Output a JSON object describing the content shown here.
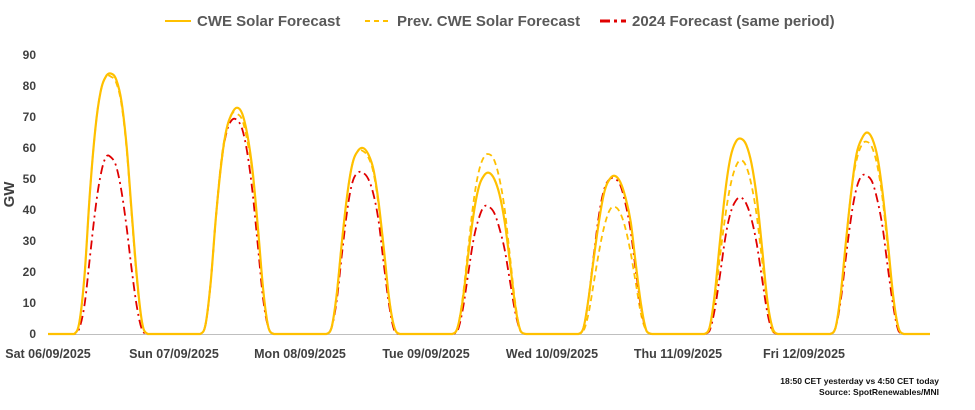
{
  "chart_data": {
    "type": "line",
    "title": "",
    "xlabel": "",
    "ylabel": "GW",
    "ylim": [
      0,
      90
    ],
    "yticks": [
      0,
      10,
      20,
      30,
      40,
      50,
      60,
      70,
      80,
      90
    ],
    "grid": false,
    "legend_position": "top",
    "days": [
      "Sat 06/09/2025",
      "Sun 07/09/2025",
      "Mon 08/09/2025",
      "Tue 09/09/2025",
      "Wed 10/09/2025",
      "Thu 11/09/2025",
      "Fri 12/09/2025"
    ],
    "day_hours": [
      4,
      5,
      6,
      7,
      8,
      9,
      10,
      11,
      12,
      13,
      14,
      15,
      16,
      17,
      18,
      19,
      20,
      21
    ],
    "series": [
      {
        "name": "CWE Solar Forecast",
        "color": "#FFC000",
        "style": "solid",
        "daily_values": [
          [
            0,
            0,
            4,
            20,
            46,
            66,
            78,
            83,
            84,
            82,
            75,
            60,
            38,
            17,
            3,
            0,
            0,
            0
          ],
          [
            0,
            0,
            3,
            17,
            38,
            55,
            66,
            71,
            73,
            71,
            64,
            52,
            34,
            14,
            2,
            0,
            0,
            0
          ],
          [
            0,
            0,
            2,
            13,
            30,
            45,
            55,
            59,
            60,
            58,
            53,
            42,
            27,
            11,
            2,
            0,
            0,
            0
          ],
          [
            0,
            0,
            2,
            11,
            25,
            38,
            47,
            51,
            52,
            50,
            45,
            36,
            23,
            9,
            1,
            0,
            0,
            0
          ],
          [
            0,
            0,
            2,
            12,
            25,
            37,
            46,
            50,
            51,
            49,
            44,
            36,
            22,
            9,
            1,
            0,
            0,
            0
          ],
          [
            0,
            0,
            2,
            13,
            30,
            46,
            57,
            62,
            63,
            61,
            55,
            44,
            28,
            11,
            2,
            0,
            0,
            0
          ],
          [
            0,
            0,
            2,
            13,
            30,
            46,
            58,
            63,
            65,
            63,
            57,
            45,
            29,
            12,
            2,
            0,
            0,
            0
          ]
        ]
      },
      {
        "name": "Prev. CWE Solar Forecast",
        "color": "#FFC000",
        "style": "dashed",
        "daily_values": [
          [
            0,
            0,
            4,
            20,
            46,
            66,
            78,
            83,
            83,
            81,
            74,
            59,
            37,
            16,
            3,
            0,
            0,
            0
          ],
          [
            0,
            0,
            3,
            17,
            38,
            56,
            66,
            71,
            71,
            69,
            62,
            51,
            33,
            14,
            2,
            0,
            0,
            0
          ],
          [
            0,
            0,
            2,
            13,
            30,
            45,
            55,
            59,
            59,
            57,
            52,
            41,
            26,
            11,
            2,
            0,
            0,
            0
          ],
          [
            0,
            0,
            2,
            12,
            27,
            42,
            52,
            57,
            58,
            56,
            50,
            40,
            25,
            10,
            1,
            0,
            0,
            0
          ],
          [
            0,
            0,
            1,
            7,
            17,
            27,
            35,
            40,
            41,
            39,
            34,
            26,
            16,
            6,
            1,
            0,
            0,
            0
          ],
          [
            0,
            0,
            2,
            11,
            25,
            38,
            48,
            54,
            56,
            54,
            48,
            38,
            24,
            10,
            1,
            0,
            0,
            0
          ],
          [
            0,
            0,
            2,
            13,
            30,
            46,
            56,
            61,
            62,
            60,
            54,
            43,
            27,
            11,
            2,
            0,
            0,
            0
          ]
        ]
      },
      {
        "name": "2024 Forecast (same period)",
        "color": "#E00000",
        "style": "dashdot",
        "daily_values": [
          [
            0,
            0,
            2,
            10,
            25,
            40,
            51,
            57,
            57,
            54,
            46,
            34,
            20,
            8,
            1,
            0,
            0,
            0
          ],
          [
            0,
            0,
            3,
            17,
            38,
            55,
            65,
            69,
            69,
            66,
            58,
            45,
            28,
            11,
            2,
            0,
            0,
            0
          ],
          [
            0,
            0,
            2,
            11,
            26,
            40,
            49,
            52,
            52,
            50,
            45,
            36,
            22,
            9,
            1,
            0,
            0,
            0
          ],
          [
            0,
            0,
            1,
            8,
            19,
            30,
            37,
            41,
            41,
            39,
            34,
            27,
            17,
            7,
            1,
            0,
            0,
            0
          ],
          [
            0,
            0,
            2,
            12,
            26,
            39,
            47,
            50,
            50,
            48,
            42,
            33,
            20,
            8,
            1,
            0,
            0,
            0
          ],
          [
            0,
            0,
            1,
            8,
            19,
            31,
            39,
            43,
            44,
            42,
            37,
            29,
            18,
            7,
            1,
            0,
            0,
            0
          ],
          [
            0,
            0,
            2,
            11,
            25,
            38,
            47,
            51,
            51,
            49,
            43,
            34,
            21,
            9,
            1,
            0,
            0,
            0
          ]
        ]
      }
    ]
  },
  "footnote": {
    "line1": "18:50 CET yesterday vs  4:50 CET today",
    "line2": "Source: SpotRenewables/MNI"
  }
}
